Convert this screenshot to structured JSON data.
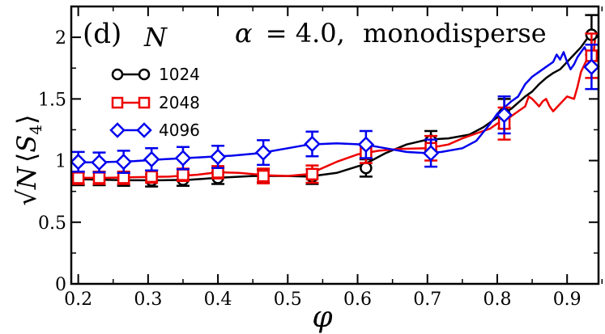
{
  "chart_data": {
    "type": "line",
    "title": "",
    "panel_label": "(d)",
    "legend_title": "N",
    "annotation": {
      "alpha_symbol": "α",
      "equals": "= 4.0,",
      "regime": "monodisperse"
    },
    "xlabel": "φ",
    "ylabel": {
      "sqrt": "√",
      "N": "N",
      "S": "S",
      "sub": "4"
    },
    "xlim": [
      0.19,
      0.945
    ],
    "ylim": [
      0,
      2.25
    ],
    "xticks": [
      0.2,
      0.3,
      0.4,
      0.5,
      0.6,
      0.7,
      0.8,
      0.9
    ],
    "xtick_labels": [
      "0.2",
      "0.3",
      "0.4",
      "0.5",
      "0.6",
      "0.7",
      "0.8",
      "0.9"
    ],
    "yticks": [
      0,
      0.5,
      1,
      1.5,
      2
    ],
    "ytick_labels": [
      "0",
      "0.5",
      "1",
      "1.5",
      "2"
    ],
    "grid": false,
    "legend_position": "top-left",
    "series": [
      {
        "name": "1024",
        "color": "#000000",
        "marker": "circle",
        "curve": [
          [
            0.195,
            0.85
          ],
          [
            0.23,
            0.845
          ],
          [
            0.27,
            0.84
          ],
          [
            0.32,
            0.84
          ],
          [
            0.36,
            0.845
          ],
          [
            0.4,
            0.86
          ],
          [
            0.45,
            0.875
          ],
          [
            0.5,
            0.875
          ],
          [
            0.53,
            0.87
          ],
          [
            0.57,
            0.9
          ],
          [
            0.61,
            0.97
          ],
          [
            0.64,
            1.06
          ],
          [
            0.67,
            1.13
          ],
          [
            0.7,
            1.17
          ],
          [
            0.73,
            1.18
          ],
          [
            0.76,
            1.21
          ],
          [
            0.78,
            1.27
          ],
          [
            0.8,
            1.35
          ],
          [
            0.82,
            1.42
          ],
          [
            0.84,
            1.52
          ],
          [
            0.85,
            1.56
          ],
          [
            0.86,
            1.62
          ],
          [
            0.87,
            1.67
          ],
          [
            0.88,
            1.71
          ],
          [
            0.89,
            1.74
          ],
          [
            0.9,
            1.8
          ],
          [
            0.91,
            1.86
          ],
          [
            0.92,
            1.92
          ],
          [
            0.93,
            2.0
          ],
          [
            0.94,
            2.02
          ]
        ],
        "points": [
          {
            "x": 0.2,
            "y": 0.85,
            "err": 0.05
          },
          {
            "x": 0.23,
            "y": 0.85,
            "err": 0.05
          },
          {
            "x": 0.265,
            "y": 0.845,
            "err": 0.05
          },
          {
            "x": 0.305,
            "y": 0.84,
            "err": 0.05
          },
          {
            "x": 0.35,
            "y": 0.845,
            "err": 0.05
          },
          {
            "x": 0.4,
            "y": 0.86,
            "err": 0.05
          },
          {
            "x": 0.465,
            "y": 0.875,
            "err": 0.05
          },
          {
            "x": 0.535,
            "y": 0.87,
            "err": 0.06
          },
          {
            "x": 0.612,
            "y": 0.94,
            "err": 0.07
          },
          {
            "x": 0.705,
            "y": 1.16,
            "err": 0.08
          },
          {
            "x": 0.81,
            "y": 1.38,
            "err": 0.12
          },
          {
            "x": 0.935,
            "y": 2.02,
            "err": 0.16
          }
        ]
      },
      {
        "name": "2048",
        "color": "#ee0000",
        "marker": "square",
        "curve": [
          [
            0.195,
            0.86
          ],
          [
            0.24,
            0.86
          ],
          [
            0.28,
            0.865
          ],
          [
            0.33,
            0.87
          ],
          [
            0.37,
            0.885
          ],
          [
            0.4,
            0.905
          ],
          [
            0.43,
            0.9
          ],
          [
            0.47,
            0.88
          ],
          [
            0.5,
            0.875
          ],
          [
            0.53,
            0.89
          ],
          [
            0.57,
            0.99
          ],
          [
            0.6,
            1.05
          ],
          [
            0.63,
            1.08
          ],
          [
            0.66,
            1.095
          ],
          [
            0.7,
            1.1
          ],
          [
            0.73,
            1.13
          ],
          [
            0.75,
            1.18
          ],
          [
            0.77,
            1.22
          ],
          [
            0.79,
            1.26
          ],
          [
            0.8,
            1.3
          ],
          [
            0.81,
            1.32
          ],
          [
            0.82,
            1.36
          ],
          [
            0.83,
            1.4
          ],
          [
            0.84,
            1.44
          ],
          [
            0.845,
            1.52
          ],
          [
            0.85,
            1.5
          ],
          [
            0.86,
            1.44
          ],
          [
            0.865,
            1.48
          ],
          [
            0.87,
            1.5
          ],
          [
            0.875,
            1.44
          ],
          [
            0.88,
            1.4
          ],
          [
            0.89,
            1.46
          ],
          [
            0.9,
            1.52
          ],
          [
            0.91,
            1.5
          ],
          [
            0.915,
            1.6
          ],
          [
            0.92,
            1.72
          ],
          [
            0.93,
            1.84
          ],
          [
            0.935,
            1.72
          ],
          [
            0.94,
            1.98
          ]
        ],
        "points": [
          {
            "x": 0.2,
            "y": 0.86,
            "err": 0.05
          },
          {
            "x": 0.23,
            "y": 0.86,
            "err": 0.05
          },
          {
            "x": 0.265,
            "y": 0.86,
            "err": 0.05
          },
          {
            "x": 0.305,
            "y": 0.87,
            "err": 0.05
          },
          {
            "x": 0.35,
            "y": 0.885,
            "err": 0.05
          },
          {
            "x": 0.4,
            "y": 0.905,
            "err": 0.05
          },
          {
            "x": 0.465,
            "y": 0.875,
            "err": 0.06
          },
          {
            "x": 0.535,
            "y": 0.89,
            "err": 0.07
          },
          {
            "x": 0.612,
            "y": 1.06,
            "err": 0.08
          },
          {
            "x": 0.705,
            "y": 1.1,
            "err": 0.1
          },
          {
            "x": 0.81,
            "y": 1.3,
            "err": 0.13
          },
          {
            "x": 0.935,
            "y": 1.85,
            "err": 0.18
          }
        ]
      },
      {
        "name": "4096",
        "color": "#0000ee",
        "marker": "diamond",
        "curve": [
          [
            0.195,
            0.985
          ],
          [
            0.22,
            0.985
          ],
          [
            0.25,
            0.99
          ],
          [
            0.28,
            0.995
          ],
          [
            0.32,
            1.01
          ],
          [
            0.37,
            1.025
          ],
          [
            0.42,
            1.04
          ],
          [
            0.46,
            1.06
          ],
          [
            0.5,
            1.1
          ],
          [
            0.53,
            1.13
          ],
          [
            0.57,
            1.14
          ],
          [
            0.61,
            1.13
          ],
          [
            0.64,
            1.1
          ],
          [
            0.67,
            1.07
          ],
          [
            0.7,
            1.06
          ],
          [
            0.72,
            1.07
          ],
          [
            0.75,
            1.1
          ],
          [
            0.77,
            1.16
          ],
          [
            0.78,
            1.23
          ],
          [
            0.79,
            1.3
          ],
          [
            0.8,
            1.38
          ],
          [
            0.81,
            1.43
          ],
          [
            0.82,
            1.48
          ],
          [
            0.83,
            1.52
          ],
          [
            0.84,
            1.62
          ],
          [
            0.85,
            1.68
          ],
          [
            0.86,
            1.72
          ],
          [
            0.87,
            1.76
          ],
          [
            0.88,
            1.8
          ],
          [
            0.885,
            1.86
          ],
          [
            0.89,
            1.82
          ],
          [
            0.895,
            1.88
          ],
          [
            0.9,
            1.8
          ],
          [
            0.905,
            1.74
          ],
          [
            0.91,
            1.78
          ],
          [
            0.915,
            1.84
          ],
          [
            0.92,
            1.88
          ],
          [
            0.925,
            1.92
          ],
          [
            0.93,
            1.85
          ],
          [
            0.935,
            1.78
          ],
          [
            0.94,
            1.76
          ]
        ],
        "points": [
          {
            "x": 0.2,
            "y": 0.99,
            "err": 0.08
          },
          {
            "x": 0.23,
            "y": 0.985,
            "err": 0.08
          },
          {
            "x": 0.265,
            "y": 0.99,
            "err": 0.09
          },
          {
            "x": 0.305,
            "y": 1.01,
            "err": 0.09
          },
          {
            "x": 0.35,
            "y": 1.02,
            "err": 0.09
          },
          {
            "x": 0.4,
            "y": 1.03,
            "err": 0.09
          },
          {
            "x": 0.465,
            "y": 1.065,
            "err": 0.1
          },
          {
            "x": 0.535,
            "y": 1.135,
            "err": 0.1
          },
          {
            "x": 0.612,
            "y": 1.13,
            "err": 0.11
          },
          {
            "x": 0.705,
            "y": 1.06,
            "err": 0.11
          },
          {
            "x": 0.81,
            "y": 1.37,
            "err": 0.15
          },
          {
            "x": 0.935,
            "y": 1.76,
            "err": 0.18
          }
        ]
      }
    ]
  }
}
